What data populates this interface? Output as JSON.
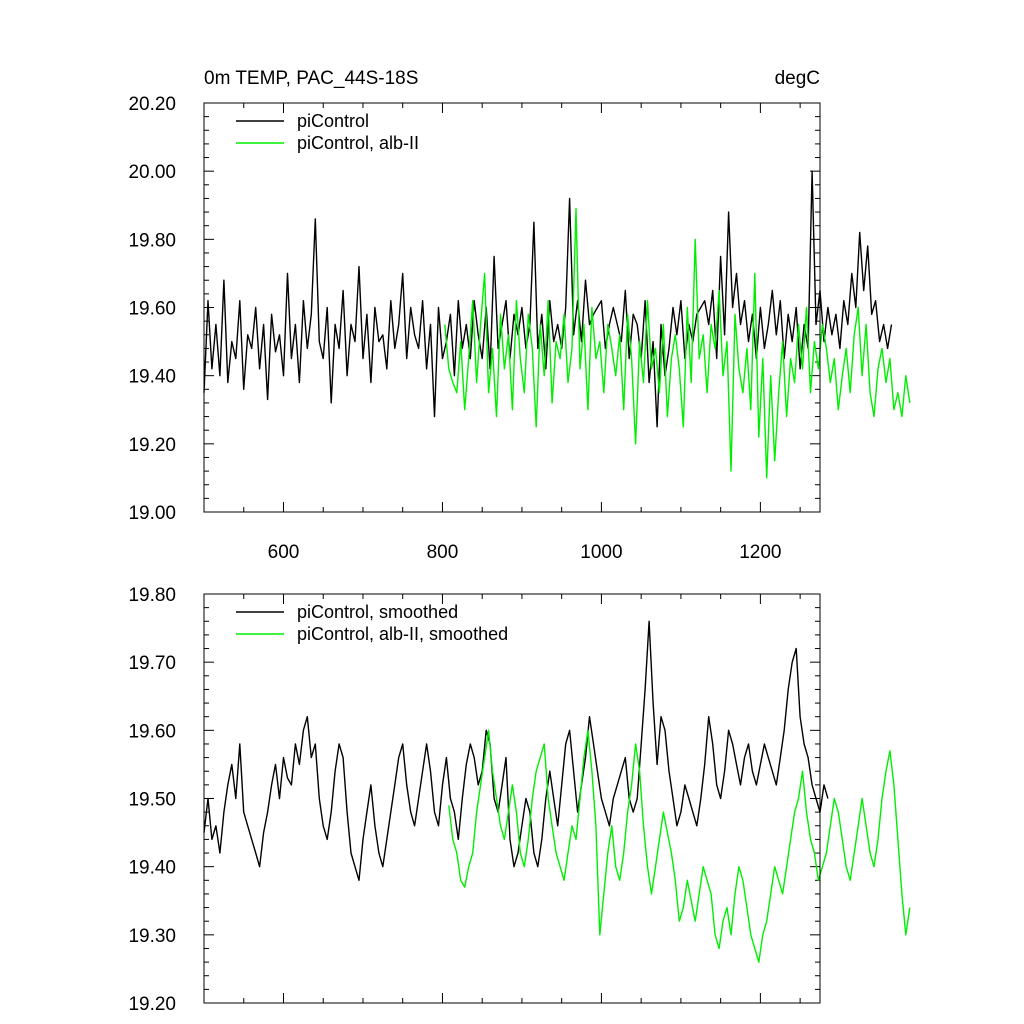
{
  "chart_data": [
    {
      "type": "line",
      "title_left": "0m TEMP, PAC_44S-18S",
      "title_right": "degC",
      "xlim": [
        500,
        1275
      ],
      "ylim": [
        19.0,
        20.2
      ],
      "xticks": [
        600,
        800,
        1000,
        1200
      ],
      "xtick_labels": [
        "600",
        "800",
        "1000",
        "1200"
      ],
      "yticks": [
        19.0,
        19.2,
        19.4,
        19.6,
        19.8,
        20.0,
        20.2
      ],
      "ytick_labels": [
        "19.00",
        "19.20",
        "19.40",
        "19.60",
        "19.80",
        "20.00",
        "20.20"
      ],
      "legend": "top-left",
      "grid": false,
      "series": [
        {
          "name": "piControl",
          "color": "#000000",
          "x_start": 500,
          "x_step": 5,
          "values": [
            19.35,
            19.62,
            19.42,
            19.55,
            19.4,
            19.68,
            19.38,
            19.5,
            19.45,
            19.62,
            19.36,
            19.52,
            19.48,
            19.6,
            19.42,
            19.55,
            19.33,
            19.58,
            19.47,
            19.52,
            19.4,
            19.7,
            19.45,
            19.55,
            19.38,
            19.62,
            19.48,
            19.58,
            19.86,
            19.5,
            19.45,
            19.6,
            19.32,
            19.55,
            19.48,
            19.65,
            19.4,
            19.55,
            19.5,
            19.72,
            19.45,
            19.58,
            19.38,
            19.6,
            19.5,
            19.52,
            19.42,
            19.62,
            19.48,
            19.55,
            19.7,
            19.45,
            19.6,
            19.52,
            19.48,
            19.62,
            19.42,
            19.55,
            19.28,
            19.6,
            19.45,
            19.5,
            19.58,
            19.4,
            19.62,
            19.48,
            19.55,
            19.45,
            19.62,
            19.52,
            19.45,
            19.6,
            19.42,
            19.75,
            19.48,
            19.55,
            19.62,
            19.45,
            19.58,
            19.52,
            19.6,
            19.48,
            19.55,
            19.85,
            19.48,
            19.58,
            19.42,
            19.62,
            19.5,
            19.55,
            19.48,
            19.6,
            19.92,
            19.52,
            19.62,
            19.5,
            19.68,
            19.55,
            19.58,
            19.6,
            19.62,
            19.48,
            19.55,
            19.6,
            19.55,
            19.5,
            19.65,
            19.45,
            19.58,
            19.55,
            19.45,
            19.62,
            19.38,
            19.5,
            19.25,
            19.55,
            19.4,
            19.48,
            19.6,
            19.52,
            19.62,
            19.45,
            19.55,
            19.5,
            19.58,
            19.6,
            19.62,
            19.55,
            19.65,
            19.45,
            19.75,
            19.52,
            19.88,
            19.6,
            19.7,
            19.55,
            19.62,
            19.5,
            19.58,
            19.45,
            19.6,
            19.48,
            19.55,
            19.65,
            19.52,
            19.62,
            19.45,
            19.58,
            19.5,
            19.6,
            19.42,
            19.55,
            19.48,
            20.0,
            19.55,
            19.65,
            19.5,
            19.6,
            19.52,
            19.58,
            19.48,
            19.62,
            19.55,
            19.7,
            19.6,
            19.82,
            19.65,
            19.78,
            19.58,
            19.62,
            19.5,
            19.55,
            19.48,
            19.55
          ]
        },
        {
          "name": "piControl, alb-II",
          "color": "#00ee00",
          "x_start": 803,
          "x_step": 5,
          "values": [
            19.55,
            19.42,
            19.38,
            19.35,
            19.5,
            19.3,
            19.45,
            19.62,
            19.38,
            19.55,
            19.7,
            19.35,
            19.48,
            19.28,
            19.58,
            19.42,
            19.52,
            19.3,
            19.62,
            19.45,
            19.35,
            19.58,
            19.48,
            19.25,
            19.55,
            19.4,
            19.62,
            19.32,
            19.5,
            19.45,
            19.58,
            19.38,
            19.48,
            19.89,
            19.42,
            19.55,
            19.3,
            19.6,
            19.45,
            19.5,
            19.35,
            19.55,
            19.48,
            19.4,
            19.52,
            19.3,
            19.58,
            19.45,
            19.2,
            19.5,
            19.38,
            19.62,
            19.42,
            19.48,
            19.35,
            19.55,
            19.28,
            19.45,
            19.52,
            19.42,
            19.25,
            19.6,
            19.38,
            19.8,
            19.45,
            19.52,
            19.35,
            19.55,
            19.48,
            19.65,
            19.4,
            19.5,
            19.12,
            19.58,
            19.42,
            19.35,
            19.48,
            19.3,
            19.7,
            19.22,
            19.45,
            19.1,
            19.4,
            19.15,
            19.35,
            19.5,
            19.28,
            19.45,
            19.38,
            19.55,
            19.42,
            19.6,
            19.35,
            19.5,
            19.42,
            19.55,
            19.48,
            19.38,
            19.45,
            19.3,
            19.4,
            19.48,
            19.35,
            19.52,
            19.6,
            19.4,
            19.55,
            19.35,
            19.28,
            19.42,
            19.48,
            19.38,
            19.45,
            19.3,
            19.35,
            19.28,
            19.4,
            19.32
          ]
        }
      ]
    },
    {
      "type": "line",
      "xlim": [
        500,
        1275
      ],
      "ylim": [
        19.2,
        19.8
      ],
      "xticks": [
        600,
        800,
        1000,
        1200
      ],
      "xtick_labels": [],
      "yticks": [
        19.2,
        19.3,
        19.4,
        19.5,
        19.6,
        19.7,
        19.8
      ],
      "ytick_labels": [
        "19.20",
        "19.30",
        "19.40",
        "19.50",
        "19.60",
        "19.70",
        "19.80"
      ],
      "legend": "top-left",
      "grid": false,
      "series": [
        {
          "name": "piControl, smoothed",
          "color": "#000000",
          "x_start": 500,
          "x_step": 5,
          "values": [
            19.45,
            19.5,
            19.44,
            19.46,
            19.42,
            19.48,
            19.52,
            19.55,
            19.5,
            19.58,
            19.48,
            19.46,
            19.44,
            19.42,
            19.4,
            19.45,
            19.48,
            19.52,
            19.55,
            19.5,
            19.56,
            19.53,
            19.52,
            19.58,
            19.55,
            19.6,
            19.62,
            19.56,
            19.58,
            19.5,
            19.46,
            19.44,
            19.48,
            19.54,
            19.58,
            19.56,
            19.48,
            19.42,
            19.4,
            19.38,
            19.44,
            19.48,
            19.52,
            19.46,
            19.42,
            19.4,
            19.44,
            19.48,
            19.52,
            19.56,
            19.58,
            19.52,
            19.48,
            19.46,
            19.5,
            19.54,
            19.58,
            19.54,
            19.48,
            19.46,
            19.52,
            19.56,
            19.5,
            19.48,
            19.44,
            19.5,
            19.55,
            19.58,
            19.56,
            19.52,
            19.54,
            19.6,
            19.58,
            19.5,
            19.48,
            19.52,
            19.56,
            19.44,
            19.4,
            19.42,
            19.46,
            19.5,
            19.48,
            19.42,
            19.4,
            19.44,
            19.5,
            19.54,
            19.5,
            19.46,
            19.52,
            19.58,
            19.6,
            19.54,
            19.48,
            19.52,
            19.56,
            19.62,
            19.58,
            19.54,
            19.5,
            19.48,
            19.46,
            19.5,
            19.52,
            19.54,
            19.56,
            19.5,
            19.48,
            19.5,
            19.58,
            19.66,
            19.76,
            19.64,
            19.55,
            19.62,
            19.6,
            19.54,
            19.5,
            19.46,
            19.48,
            19.52,
            19.5,
            19.48,
            19.46,
            19.5,
            19.55,
            19.62,
            19.58,
            19.52,
            19.5,
            19.54,
            19.6,
            19.58,
            19.55,
            19.52,
            19.56,
            19.58,
            19.54,
            19.52,
            19.55,
            19.58,
            19.56,
            19.54,
            19.52,
            19.56,
            19.6,
            19.66,
            19.7,
            19.72,
            19.62,
            19.58,
            19.56,
            19.52,
            19.5,
            19.48,
            19.52,
            19.5
          ]
        },
        {
          "name": "piControl, alb-II, smoothed",
          "color": "#00ee00",
          "x_start": 808,
          "x_step": 5,
          "values": [
            19.49,
            19.44,
            19.42,
            19.38,
            19.37,
            19.4,
            19.42,
            19.48,
            19.52,
            19.56,
            19.6,
            19.54,
            19.5,
            19.46,
            19.44,
            19.48,
            19.52,
            19.48,
            19.42,
            19.4,
            19.44,
            19.5,
            19.54,
            19.56,
            19.58,
            19.5,
            19.46,
            19.42,
            19.4,
            19.38,
            19.42,
            19.46,
            19.44,
            19.5,
            19.56,
            19.6,
            19.54,
            19.46,
            19.3,
            19.36,
            19.42,
            19.46,
            19.4,
            19.38,
            19.42,
            19.48,
            19.52,
            19.58,
            19.54,
            19.46,
            19.4,
            19.36,
            19.4,
            19.44,
            19.48,
            19.45,
            19.42,
            19.38,
            19.32,
            19.34,
            19.38,
            19.35,
            19.32,
            19.36,
            19.4,
            19.38,
            19.36,
            19.3,
            19.28,
            19.32,
            19.34,
            19.3,
            19.36,
            19.4,
            19.38,
            19.34,
            19.3,
            19.28,
            19.26,
            19.3,
            19.32,
            19.36,
            19.4,
            19.38,
            19.36,
            19.4,
            19.44,
            19.48,
            19.5,
            19.54,
            19.48,
            19.44,
            19.42,
            19.38,
            19.4,
            19.42,
            19.46,
            19.5,
            19.48,
            19.44,
            19.4,
            19.38,
            19.42,
            19.46,
            19.5,
            19.46,
            19.42,
            19.4,
            19.44,
            19.5,
            19.54,
            19.57,
            19.52,
            19.44,
            19.36,
            19.3,
            19.34
          ]
        }
      ]
    }
  ]
}
